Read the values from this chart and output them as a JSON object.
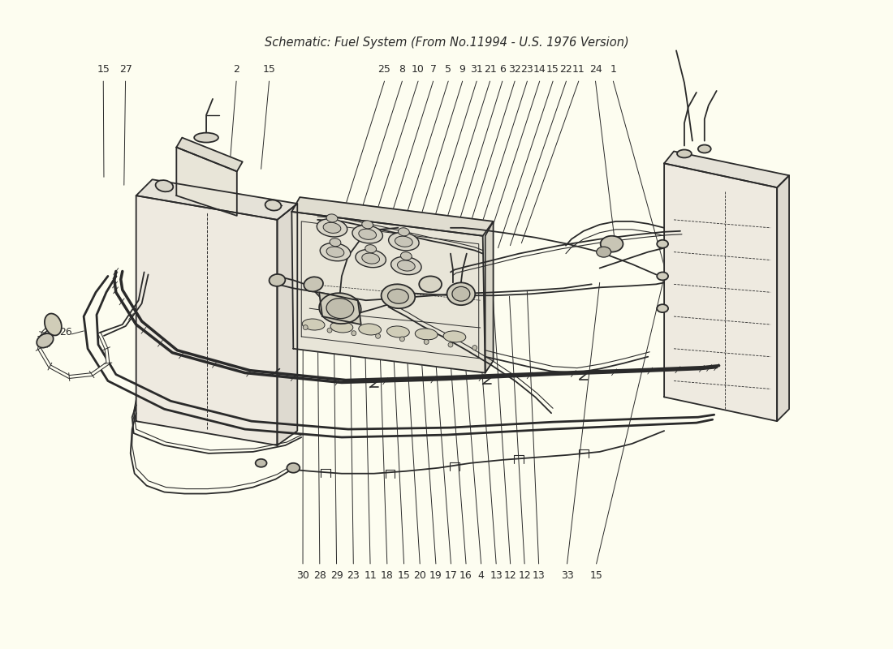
{
  "title": "Schematic: Fuel System (From No.11994 - U.S. 1976 Version)",
  "bg_color": "#FDFDF0",
  "line_color": "#2a2a2a",
  "label_color": "#2a2a2a",
  "fig_w": 11.0,
  "fig_h": 8.0,
  "dpi": 100,
  "top_labels": [
    [
      "15",
      0.113
    ],
    [
      "27",
      0.138
    ],
    [
      "2",
      0.263
    ],
    [
      "15",
      0.3
    ],
    [
      "25",
      0.43
    ],
    [
      "8",
      0.45
    ],
    [
      "10",
      0.468
    ],
    [
      "7",
      0.485
    ],
    [
      "5",
      0.502
    ],
    [
      "9",
      0.518
    ],
    [
      "31",
      0.534
    ],
    [
      "21",
      0.549
    ],
    [
      "6",
      0.563
    ],
    [
      "32",
      0.577
    ],
    [
      "23",
      0.591
    ],
    [
      "14",
      0.605
    ],
    [
      "15",
      0.62
    ],
    [
      "22",
      0.635
    ],
    [
      "11",
      0.649
    ],
    [
      "24",
      0.668
    ],
    [
      "1",
      0.688
    ]
  ],
  "bottom_labels": [
    [
      "30",
      0.338
    ],
    [
      "28",
      0.357
    ],
    [
      "29",
      0.376
    ],
    [
      "23",
      0.395
    ],
    [
      "11",
      0.414
    ],
    [
      "18",
      0.433
    ],
    [
      "15",
      0.452
    ],
    [
      "20",
      0.47
    ],
    [
      "19",
      0.488
    ],
    [
      "17",
      0.505
    ],
    [
      "16",
      0.522
    ],
    [
      "4",
      0.539
    ],
    [
      "13",
      0.556
    ],
    [
      "12",
      0.572
    ],
    [
      "12",
      0.588
    ],
    [
      "13",
      0.604
    ],
    [
      "33",
      0.636
    ],
    [
      "15",
      0.669
    ]
  ]
}
